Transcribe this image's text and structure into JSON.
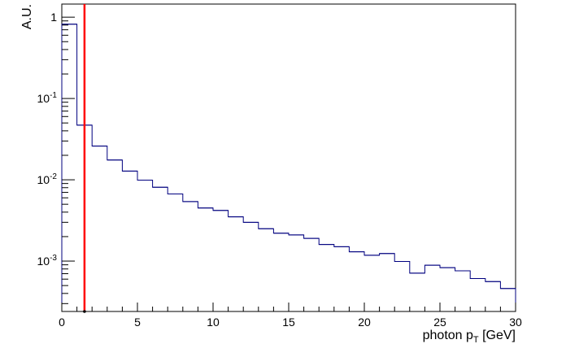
{
  "chart_data": {
    "type": "histogram",
    "xlabel": "photon p",
    "xlabel_sub": "T",
    "xlabel_unit": " [GeV]",
    "ylabel": "A.U.",
    "x_scale": "linear",
    "y_scale": "log",
    "xlim": [
      0,
      30
    ],
    "ylim": [
      0.00024,
      1.45
    ],
    "x_ticks": [
      {
        "value": 0,
        "label": "0"
      },
      {
        "value": 5,
        "label": "5"
      },
      {
        "value": 10,
        "label": "10"
      },
      {
        "value": 15,
        "label": "15"
      },
      {
        "value": 20,
        "label": "20"
      },
      {
        "value": 25,
        "label": "25"
      },
      {
        "value": 30,
        "label": "30"
      }
    ],
    "y_ticks": [
      {
        "value": 1,
        "base": "1",
        "exp": ""
      },
      {
        "value": 0.1,
        "base": "10",
        "exp": "-1"
      },
      {
        "value": 0.01,
        "base": "10",
        "exp": "-2"
      },
      {
        "value": 0.001,
        "base": "10",
        "exp": "-3"
      }
    ],
    "bin_width": 1,
    "bin_edges_start": 0,
    "values": [
      0.82,
      0.047,
      0.026,
      0.0175,
      0.0128,
      0.0099,
      0.0081,
      0.0067,
      0.0054,
      0.0045,
      0.0042,
      0.0035,
      0.003,
      0.0025,
      0.0022,
      0.0021,
      0.0019,
      0.0016,
      0.0015,
      0.0013,
      0.00118,
      0.00124,
      0.00099,
      0.00071,
      0.00089,
      0.00083,
      0.00076,
      0.00061,
      0.00056,
      0.00046
    ],
    "cut_line": {
      "x": 1.5,
      "color": "#ff0000"
    },
    "histogram_color": "#00007f",
    "grid": false
  }
}
